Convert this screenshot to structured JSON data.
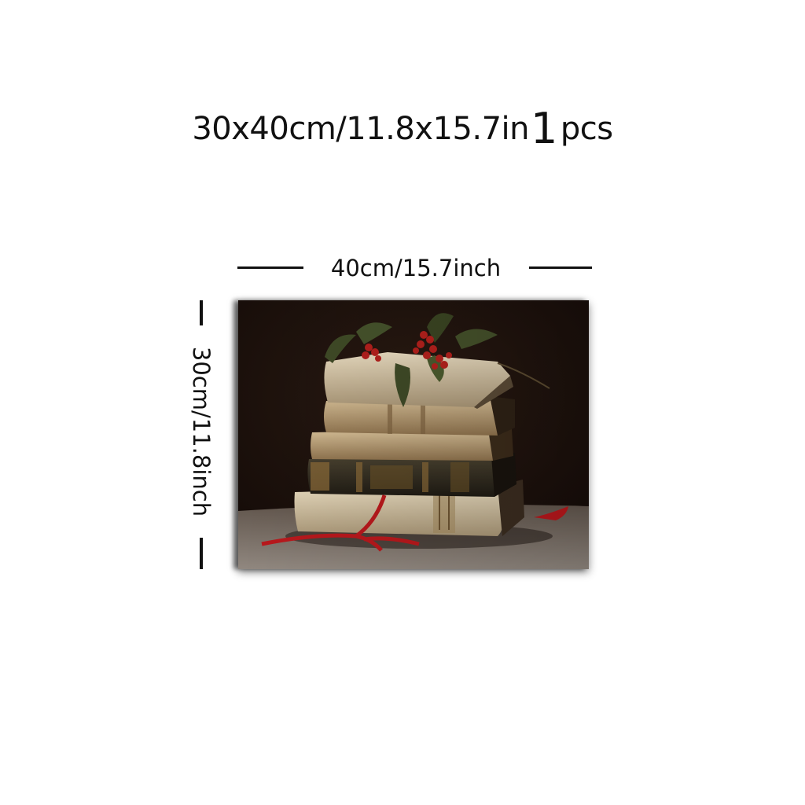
{
  "title": {
    "size_text": "30x40cm/11.8x15.7in",
    "quantity": "1",
    "quantity_unit": "pcs"
  },
  "dimensions": {
    "width_label": "40cm/15.7inch",
    "height_label": "30cm/11.8inch"
  },
  "artwork": {
    "subject": "painting of a stack of old books with holly and red ribbon",
    "colors": {
      "background": "#1a0f0b",
      "book_cream": "#d8c9a8",
      "book_dark": "#2e2a20",
      "holly_leaf": "#3f4a26",
      "berry": "#b3201c",
      "ribbon": "#b8181c"
    }
  }
}
